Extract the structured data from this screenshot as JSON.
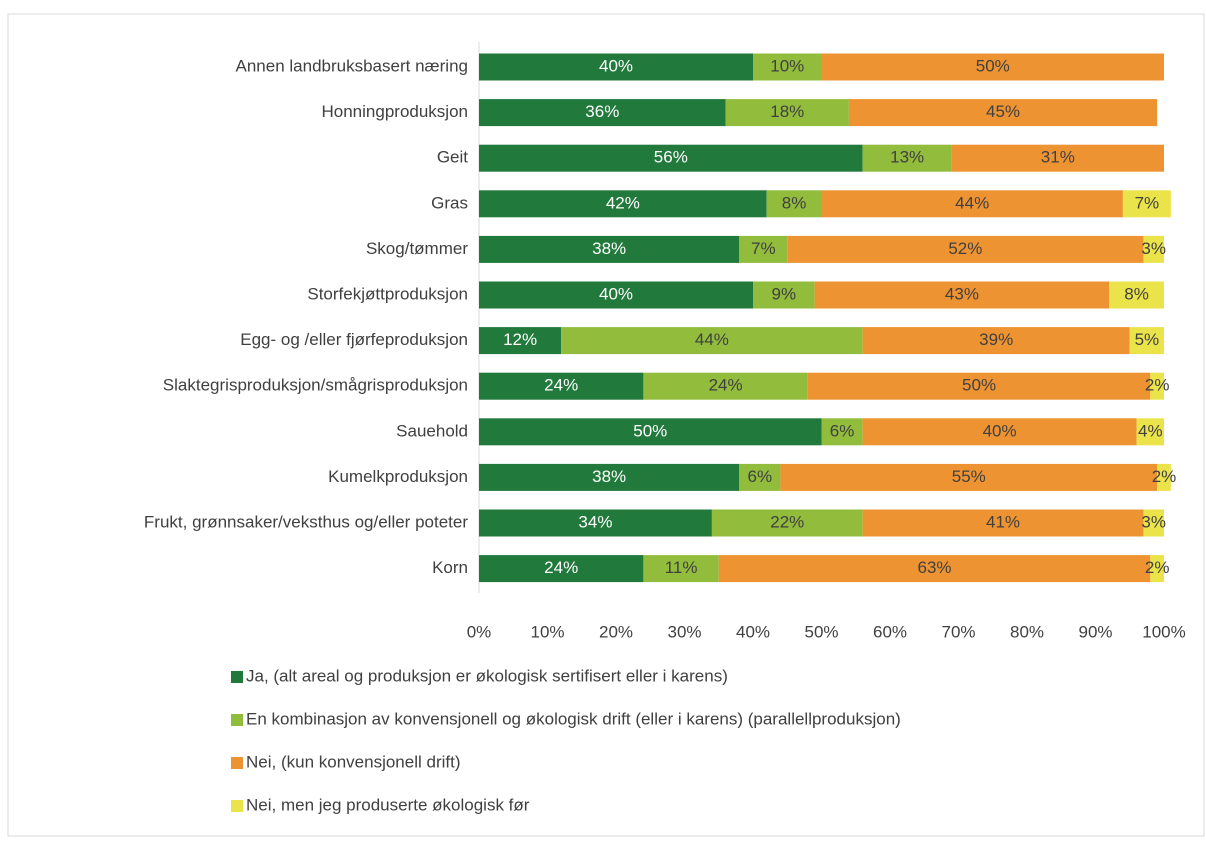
{
  "chart_data": {
    "type": "stacked-bar-horizontal",
    "categories": [
      "Annen landbruksbasert næring",
      "Honningproduksjon",
      "Geit",
      "Gras",
      "Skog/tømmer",
      "Storfekjøttproduksjon",
      "Egg- og /eller fjørfeproduksjon",
      "Slaktegrisproduksjon/smågrisproduksjon",
      "Sauehold",
      "Kumelkproduksjon",
      "Frukt, grønnsaker/veksthus og/eller poteter",
      "Korn"
    ],
    "series": [
      {
        "name": "Ja, (alt areal og produksjon er økologisk sertifisert eller i karens)",
        "color": "#217a3b",
        "values": [
          40,
          36,
          56,
          42,
          38,
          40,
          12,
          24,
          50,
          38,
          34,
          24
        ],
        "value_labels": [
          "40%",
          "36%",
          "56%",
          "42%",
          "38%",
          "40%",
          "12%",
          "24%",
          "50%",
          "38%",
          "34%",
          "24%"
        ]
      },
      {
        "name": "En kombinasjon av konvensjonell og økologisk drift (eller i karens) (parallellproduksjon)",
        "color": "#92bc3c",
        "values": [
          10,
          18,
          13,
          8,
          7,
          9,
          44,
          24,
          6,
          6,
          22,
          11
        ],
        "value_labels": [
          "10%",
          "18%",
          "13%",
          "8%",
          "7%",
          "9%",
          "44%",
          "24%",
          "6%",
          "6%",
          "22%",
          "11%"
        ]
      },
      {
        "name": "Nei, (kun konvensjonell drift)",
        "color": "#ee9332",
        "values": [
          50,
          45,
          31,
          44,
          52,
          43,
          39,
          50,
          40,
          55,
          41,
          63
        ],
        "value_labels": [
          "50%",
          "45%",
          "31%",
          "44%",
          "52%",
          "43%",
          "39%",
          "50%",
          "40%",
          "55%",
          "41%",
          "63%"
        ]
      },
      {
        "name": "Nei, men jeg produserte økologisk før",
        "color": "#ebe34a",
        "values": [
          null,
          null,
          null,
          7,
          3,
          8,
          5,
          2,
          4,
          2,
          3,
          2
        ],
        "value_labels": [
          null,
          null,
          null,
          "7%",
          "3%",
          "8%",
          "5%",
          "2%",
          "4%",
          "2%",
          "3%",
          "2%"
        ]
      }
    ],
    "xlim": [
      0,
      100
    ],
    "xticks": [
      {
        "value": 0,
        "label": "0%"
      },
      {
        "value": 10,
        "label": "10%"
      },
      {
        "value": 20,
        "label": "20%"
      },
      {
        "value": 30,
        "label": "30%"
      },
      {
        "value": 40,
        "label": "40%"
      },
      {
        "value": 50,
        "label": "50%"
      },
      {
        "value": 60,
        "label": "60%"
      },
      {
        "value": 70,
        "label": "70%"
      },
      {
        "value": 80,
        "label": "80%"
      },
      {
        "value": 90,
        "label": "90%"
      },
      {
        "value": 100,
        "label": "100%"
      }
    ],
    "legend": "bottom"
  }
}
